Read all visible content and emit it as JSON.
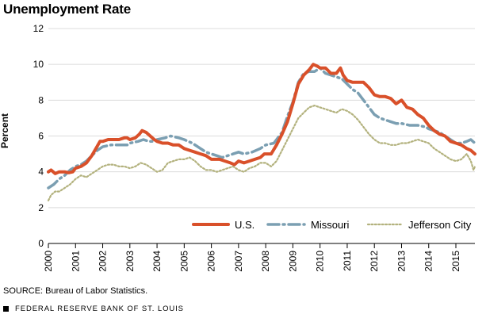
{
  "chart_data": {
    "type": "line",
    "title": "Unemployment Rate",
    "ylabel": "Percent",
    "xlabel": "",
    "ylim": [
      0,
      12
    ],
    "xlim": [
      2000,
      2015.7
    ],
    "yticks": [
      "0",
      "2",
      "4",
      "6",
      "8",
      "10",
      "12"
    ],
    "xticks": [
      "2000",
      "2001",
      "2002",
      "2003",
      "2004",
      "2005",
      "2006",
      "2007",
      "2008",
      "2009",
      "2010",
      "2011",
      "2012",
      "2013",
      "2014",
      "2015"
    ],
    "grid": true,
    "legend_position": "bottom-right",
    "series": [
      {
        "name": "U.S.",
        "color": "#d9502a",
        "style": "solid",
        "points": [
          [
            2000.0,
            4.0
          ],
          [
            2000.1,
            4.1
          ],
          [
            2000.25,
            3.9
          ],
          [
            2000.4,
            4.0
          ],
          [
            2000.6,
            4.0
          ],
          [
            2000.75,
            3.95
          ],
          [
            2000.9,
            4.0
          ],
          [
            2001.0,
            4.2
          ],
          [
            2001.2,
            4.3
          ],
          [
            2001.4,
            4.5
          ],
          [
            2001.6,
            4.9
          ],
          [
            2001.75,
            5.3
          ],
          [
            2001.9,
            5.7
          ],
          [
            2002.0,
            5.7
          ],
          [
            2002.2,
            5.8
          ],
          [
            2002.4,
            5.8
          ],
          [
            2002.6,
            5.8
          ],
          [
            2002.8,
            5.9
          ],
          [
            2002.9,
            5.9
          ],
          [
            2003.0,
            5.8
          ],
          [
            2003.2,
            5.9
          ],
          [
            2003.35,
            6.1
          ],
          [
            2003.45,
            6.3
          ],
          [
            2003.6,
            6.2
          ],
          [
            2003.75,
            6.0
          ],
          [
            2003.9,
            5.8
          ],
          [
            2004.0,
            5.7
          ],
          [
            2004.2,
            5.6
          ],
          [
            2004.4,
            5.6
          ],
          [
            2004.6,
            5.5
          ],
          [
            2004.8,
            5.5
          ],
          [
            2005.0,
            5.3
          ],
          [
            2005.2,
            5.2
          ],
          [
            2005.4,
            5.1
          ],
          [
            2005.6,
            5.0
          ],
          [
            2005.8,
            4.9
          ],
          [
            2006.0,
            4.7
          ],
          [
            2006.3,
            4.7
          ],
          [
            2006.5,
            4.6
          ],
          [
            2006.7,
            4.5
          ],
          [
            2006.85,
            4.4
          ],
          [
            2007.0,
            4.6
          ],
          [
            2007.2,
            4.5
          ],
          [
            2007.4,
            4.6
          ],
          [
            2007.6,
            4.7
          ],
          [
            2007.8,
            4.8
          ],
          [
            2007.95,
            5.0
          ],
          [
            2008.0,
            5.0
          ],
          [
            2008.2,
            5.0
          ],
          [
            2008.4,
            5.5
          ],
          [
            2008.6,
            6.1
          ],
          [
            2008.8,
            6.8
          ],
          [
            2009.0,
            7.8
          ],
          [
            2009.2,
            8.9
          ],
          [
            2009.4,
            9.4
          ],
          [
            2009.6,
            9.7
          ],
          [
            2009.75,
            10.0
          ],
          [
            2009.9,
            9.9
          ],
          [
            2010.0,
            9.8
          ],
          [
            2010.2,
            9.8
          ],
          [
            2010.4,
            9.5
          ],
          [
            2010.6,
            9.5
          ],
          [
            2010.75,
            9.8
          ],
          [
            2010.85,
            9.4
          ],
          [
            2011.0,
            9.1
          ],
          [
            2011.2,
            9.0
          ],
          [
            2011.4,
            9.0
          ],
          [
            2011.6,
            9.0
          ],
          [
            2011.8,
            8.7
          ],
          [
            2012.0,
            8.3
          ],
          [
            2012.2,
            8.2
          ],
          [
            2012.4,
            8.2
          ],
          [
            2012.6,
            8.1
          ],
          [
            2012.8,
            7.8
          ],
          [
            2013.0,
            8.0
          ],
          [
            2013.2,
            7.6
          ],
          [
            2013.4,
            7.5
          ],
          [
            2013.6,
            7.2
          ],
          [
            2013.8,
            7.0
          ],
          [
            2014.0,
            6.6
          ],
          [
            2014.2,
            6.3
          ],
          [
            2014.4,
            6.1
          ],
          [
            2014.6,
            6.0
          ],
          [
            2014.8,
            5.7
          ],
          [
            2015.0,
            5.6
          ],
          [
            2015.2,
            5.5
          ],
          [
            2015.4,
            5.3
          ],
          [
            2015.55,
            5.2
          ],
          [
            2015.7,
            5.0
          ]
        ]
      },
      {
        "name": "Missouri",
        "color": "#7b9fb2",
        "style": "dash",
        "points": [
          [
            2000.0,
            3.1
          ],
          [
            2000.2,
            3.3
          ],
          [
            2000.4,
            3.6
          ],
          [
            2000.6,
            3.8
          ],
          [
            2000.8,
            4.1
          ],
          [
            2001.0,
            4.3
          ],
          [
            2001.2,
            4.4
          ],
          [
            2001.4,
            4.6
          ],
          [
            2001.6,
            4.9
          ],
          [
            2001.8,
            5.2
          ],
          [
            2002.0,
            5.4
          ],
          [
            2002.3,
            5.5
          ],
          [
            2002.6,
            5.5
          ],
          [
            2002.9,
            5.5
          ],
          [
            2003.0,
            5.6
          ],
          [
            2003.3,
            5.7
          ],
          [
            2003.5,
            5.8
          ],
          [
            2003.7,
            5.7
          ],
          [
            2003.9,
            5.7
          ],
          [
            2004.0,
            5.8
          ],
          [
            2004.3,
            5.9
          ],
          [
            2004.5,
            6.0
          ],
          [
            2004.8,
            5.9
          ],
          [
            2005.0,
            5.8
          ],
          [
            2005.3,
            5.6
          ],
          [
            2005.6,
            5.3
          ],
          [
            2005.8,
            5.1
          ],
          [
            2006.0,
            5.0
          ],
          [
            2006.2,
            4.9
          ],
          [
            2006.4,
            4.8
          ],
          [
            2006.6,
            4.9
          ],
          [
            2006.8,
            5.0
          ],
          [
            2007.0,
            5.1
          ],
          [
            2007.2,
            5.0
          ],
          [
            2007.5,
            5.1
          ],
          [
            2007.8,
            5.3
          ],
          [
            2008.0,
            5.5
          ],
          [
            2008.3,
            5.6
          ],
          [
            2008.6,
            6.2
          ],
          [
            2008.8,
            7.1
          ],
          [
            2009.0,
            7.9
          ],
          [
            2009.2,
            9.0
          ],
          [
            2009.4,
            9.5
          ],
          [
            2009.6,
            9.6
          ],
          [
            2009.8,
            9.6
          ],
          [
            2010.0,
            9.8
          ],
          [
            2010.2,
            9.5
          ],
          [
            2010.4,
            9.4
          ],
          [
            2010.6,
            9.3
          ],
          [
            2010.8,
            9.2
          ],
          [
            2011.0,
            8.9
          ],
          [
            2011.2,
            8.6
          ],
          [
            2011.4,
            8.4
          ],
          [
            2011.6,
            8.0
          ],
          [
            2011.8,
            7.6
          ],
          [
            2012.0,
            7.2
          ],
          [
            2012.2,
            7.0
          ],
          [
            2012.4,
            6.9
          ],
          [
            2012.6,
            6.8
          ],
          [
            2012.8,
            6.7
          ],
          [
            2013.0,
            6.7
          ],
          [
            2013.3,
            6.6
          ],
          [
            2013.6,
            6.6
          ],
          [
            2013.9,
            6.5
          ],
          [
            2014.0,
            6.4
          ],
          [
            2014.2,
            6.3
          ],
          [
            2014.4,
            6.2
          ],
          [
            2014.6,
            6.0
          ],
          [
            2014.8,
            5.8
          ],
          [
            2015.0,
            5.6
          ],
          [
            2015.2,
            5.6
          ],
          [
            2015.4,
            5.7
          ],
          [
            2015.55,
            5.8
          ],
          [
            2015.7,
            5.6
          ]
        ]
      },
      {
        "name": "Jefferson City",
        "color": "#b3b27e",
        "style": "dot",
        "points": [
          [
            2000.0,
            2.4
          ],
          [
            2000.1,
            2.7
          ],
          [
            2000.25,
            2.9
          ],
          [
            2000.4,
            2.9
          ],
          [
            2000.6,
            3.1
          ],
          [
            2000.8,
            3.3
          ],
          [
            2001.0,
            3.6
          ],
          [
            2001.2,
            3.8
          ],
          [
            2001.4,
            3.7
          ],
          [
            2001.6,
            3.9
          ],
          [
            2001.8,
            4.1
          ],
          [
            2002.0,
            4.3
          ],
          [
            2002.2,
            4.4
          ],
          [
            2002.4,
            4.4
          ],
          [
            2002.6,
            4.3
          ],
          [
            2002.8,
            4.3
          ],
          [
            2003.0,
            4.2
          ],
          [
            2003.2,
            4.3
          ],
          [
            2003.4,
            4.5
          ],
          [
            2003.6,
            4.4
          ],
          [
            2003.8,
            4.2
          ],
          [
            2004.0,
            4.0
          ],
          [
            2004.2,
            4.1
          ],
          [
            2004.4,
            4.5
          ],
          [
            2004.6,
            4.6
          ],
          [
            2004.8,
            4.7
          ],
          [
            2005.0,
            4.7
          ],
          [
            2005.2,
            4.8
          ],
          [
            2005.4,
            4.6
          ],
          [
            2005.6,
            4.3
          ],
          [
            2005.8,
            4.1
          ],
          [
            2006.0,
            4.1
          ],
          [
            2006.2,
            4.0
          ],
          [
            2006.4,
            4.1
          ],
          [
            2006.6,
            4.2
          ],
          [
            2006.8,
            4.3
          ],
          [
            2007.0,
            4.1
          ],
          [
            2007.2,
            4.0
          ],
          [
            2007.4,
            4.2
          ],
          [
            2007.6,
            4.3
          ],
          [
            2007.8,
            4.5
          ],
          [
            2008.0,
            4.5
          ],
          [
            2008.2,
            4.3
          ],
          [
            2008.4,
            4.6
          ],
          [
            2008.6,
            5.2
          ],
          [
            2008.8,
            5.8
          ],
          [
            2009.0,
            6.4
          ],
          [
            2009.2,
            7.0
          ],
          [
            2009.4,
            7.3
          ],
          [
            2009.6,
            7.6
          ],
          [
            2009.8,
            7.7
          ],
          [
            2010.0,
            7.6
          ],
          [
            2010.2,
            7.5
          ],
          [
            2010.4,
            7.4
          ],
          [
            2010.6,
            7.3
          ],
          [
            2010.8,
            7.5
          ],
          [
            2011.0,
            7.4
          ],
          [
            2011.2,
            7.2
          ],
          [
            2011.4,
            6.9
          ],
          [
            2011.6,
            6.5
          ],
          [
            2011.8,
            6.1
          ],
          [
            2012.0,
            5.8
          ],
          [
            2012.2,
            5.6
          ],
          [
            2012.4,
            5.6
          ],
          [
            2012.6,
            5.5
          ],
          [
            2012.8,
            5.5
          ],
          [
            2013.0,
            5.6
          ],
          [
            2013.2,
            5.6
          ],
          [
            2013.4,
            5.7
          ],
          [
            2013.6,
            5.8
          ],
          [
            2013.8,
            5.7
          ],
          [
            2014.0,
            5.6
          ],
          [
            2014.2,
            5.3
          ],
          [
            2014.4,
            5.1
          ],
          [
            2014.6,
            4.9
          ],
          [
            2014.8,
            4.7
          ],
          [
            2015.0,
            4.6
          ],
          [
            2015.2,
            4.7
          ],
          [
            2015.4,
            5.0
          ],
          [
            2015.55,
            4.6
          ],
          [
            2015.65,
            4.1
          ],
          [
            2015.7,
            4.3
          ]
        ]
      }
    ]
  },
  "footer": {
    "source": "SOURCE: Bureau of Labor Statistics.",
    "org": "FEDERAL RESERVE BANK OF ST. LOUIS"
  }
}
